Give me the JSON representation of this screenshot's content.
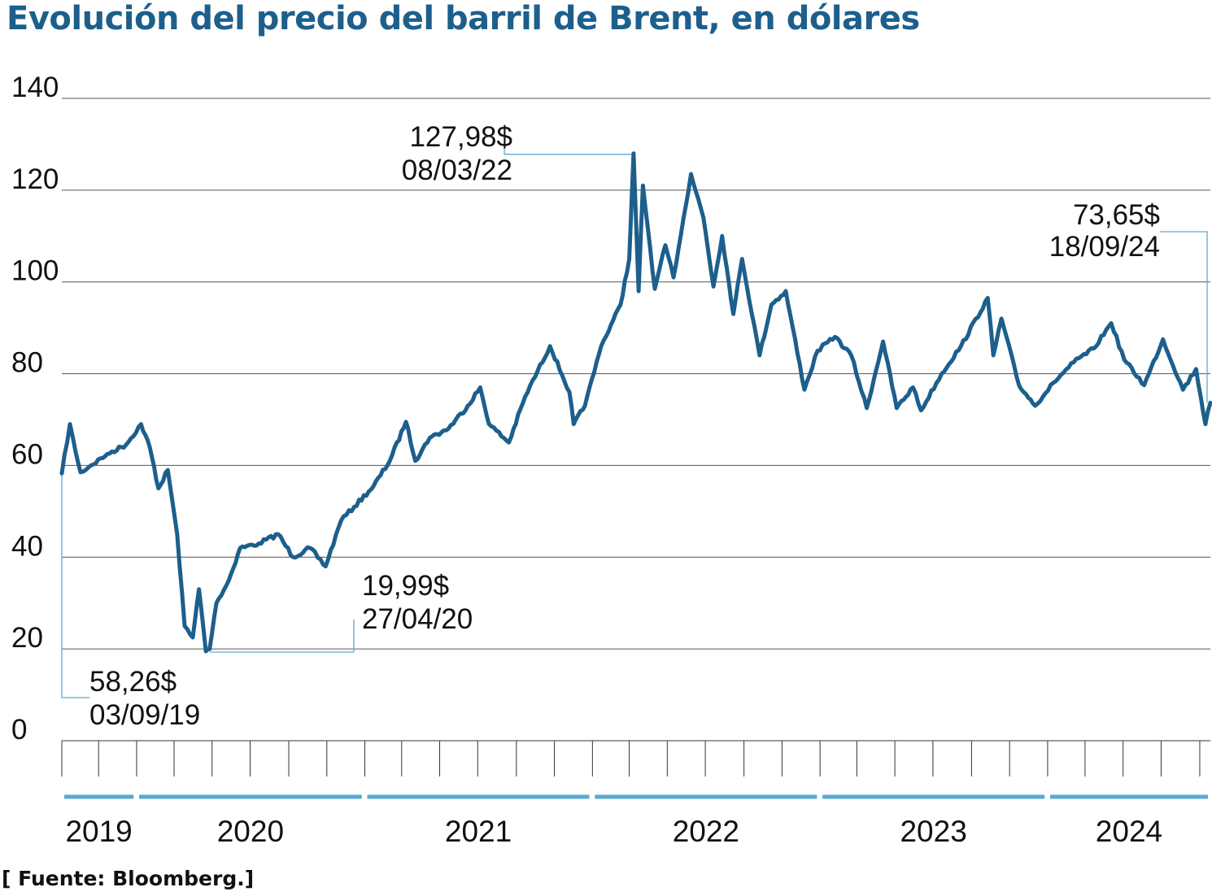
{
  "title": "Evolución del precio del barril de Brent, en dólares",
  "source": "[ Fuente: Bloomberg.]",
  "colors": {
    "line": "#1d5f8c",
    "accent": "#5aaad2",
    "grid": "#555555",
    "title": "#1d5f8c"
  },
  "chart_data": {
    "type": "line",
    "title": "Evolución del precio del barril de Brent, en dólares",
    "xlabel": "",
    "ylabel": "",
    "ylim": [
      0,
      140
    ],
    "y_ticks": [
      0,
      20,
      40,
      60,
      80,
      100,
      120,
      140
    ],
    "x_range": [
      "2019-09-03",
      "2024-09-18"
    ],
    "grid": true,
    "years": [
      {
        "label": "2019",
        "start": "2019-09-03",
        "end": "2019-12-31"
      },
      {
        "label": "2020",
        "start": "2020-01-01",
        "end": "2020-12-31"
      },
      {
        "label": "2021",
        "start": "2021-01-01",
        "end": "2021-12-31"
      },
      {
        "label": "2022",
        "start": "2022-01-01",
        "end": "2022-12-31"
      },
      {
        "label": "2023",
        "start": "2023-01-01",
        "end": "2023-12-31"
      },
      {
        "label": "2024",
        "start": "2024-01-01",
        "end": "2024-09-18"
      }
    ],
    "series": [
      {
        "points": [
          [
            "2019-09-03",
            58.26
          ],
          [
            "2019-09-16",
            69.0
          ],
          [
            "2019-09-25",
            63.0
          ],
          [
            "2019-10-03",
            58.5
          ],
          [
            "2019-10-20",
            60.0
          ],
          [
            "2019-11-15",
            62.5
          ],
          [
            "2019-12-15",
            64.5
          ],
          [
            "2020-01-08",
            69.0
          ],
          [
            "2020-01-22",
            64.0
          ],
          [
            "2020-02-05",
            55.0
          ],
          [
            "2020-02-20",
            59.0
          ],
          [
            "2020-03-06",
            45.0
          ],
          [
            "2020-03-18",
            25.0
          ],
          [
            "2020-03-31",
            22.5
          ],
          [
            "2020-04-10",
            33.0
          ],
          [
            "2020-04-21",
            19.5
          ],
          [
            "2020-04-27",
            19.99
          ],
          [
            "2020-05-08",
            30.0
          ],
          [
            "2020-05-28",
            35.0
          ],
          [
            "2020-06-15",
            42.0
          ],
          [
            "2020-07-15",
            43.0
          ],
          [
            "2020-08-15",
            45.0
          ],
          [
            "2020-09-08",
            40.0
          ],
          [
            "2020-10-05",
            42.0
          ],
          [
            "2020-10-30",
            38.0
          ],
          [
            "2020-11-24",
            48.0
          ],
          [
            "2020-12-15",
            51.0
          ],
          [
            "2021-01-15",
            55.5
          ],
          [
            "2021-02-10",
            61.0
          ],
          [
            "2021-03-08",
            69.5
          ],
          [
            "2021-03-23",
            61.0
          ],
          [
            "2021-04-15",
            66.0
          ],
          [
            "2021-05-15",
            68.0
          ],
          [
            "2021-06-15",
            73.0
          ],
          [
            "2021-07-05",
            77.0
          ],
          [
            "2021-07-19",
            69.0
          ],
          [
            "2021-08-20",
            65.0
          ],
          [
            "2021-09-15",
            75.0
          ],
          [
            "2021-10-25",
            86.0
          ],
          [
            "2021-11-25",
            76.0
          ],
          [
            "2021-12-02",
            69.0
          ],
          [
            "2021-12-20",
            73.0
          ],
          [
            "2022-01-15",
            86.0
          ],
          [
            "2022-02-15",
            95.0
          ],
          [
            "2022-03-01",
            105.0
          ],
          [
            "2022-03-08",
            127.98
          ],
          [
            "2022-03-16",
            98.0
          ],
          [
            "2022-03-23",
            121.0
          ],
          [
            "2022-04-11",
            98.5
          ],
          [
            "2022-04-28",
            108.0
          ],
          [
            "2022-05-11",
            101.0
          ],
          [
            "2022-06-08",
            123.5
          ],
          [
            "2022-06-28",
            114.0
          ],
          [
            "2022-07-14",
            99.0
          ],
          [
            "2022-07-28",
            110.0
          ],
          [
            "2022-08-15",
            93.0
          ],
          [
            "2022-08-29",
            105.0
          ],
          [
            "2022-09-26",
            84.0
          ],
          [
            "2022-10-15",
            95.0
          ],
          [
            "2022-11-07",
            98.0
          ],
          [
            "2022-12-07",
            76.5
          ],
          [
            "2022-12-28",
            85.0
          ],
          [
            "2023-01-25",
            88.0
          ],
          [
            "2023-02-20",
            84.0
          ],
          [
            "2023-03-17",
            72.5
          ],
          [
            "2023-04-12",
            87.0
          ],
          [
            "2023-05-04",
            72.5
          ],
          [
            "2023-05-30",
            77.0
          ],
          [
            "2023-06-12",
            72.0
          ],
          [
            "2023-07-15",
            80.0
          ],
          [
            "2023-08-15",
            86.0
          ],
          [
            "2023-09-27",
            96.5
          ],
          [
            "2023-10-06",
            84.0
          ],
          [
            "2023-10-19",
            92.0
          ],
          [
            "2023-11-16",
            77.5
          ],
          [
            "2023-12-12",
            73.0
          ],
          [
            "2024-01-10",
            78.0
          ],
          [
            "2024-02-12",
            82.5
          ],
          [
            "2024-03-15",
            85.5
          ],
          [
            "2024-04-12",
            91.0
          ],
          [
            "2024-05-03",
            83.0
          ],
          [
            "2024-06-04",
            77.5
          ],
          [
            "2024-07-04",
            87.5
          ],
          [
            "2024-08-05",
            76.5
          ],
          [
            "2024-08-26",
            81.0
          ],
          [
            "2024-09-10",
            69.0
          ],
          [
            "2024-09-18",
            73.65
          ]
        ]
      }
    ],
    "annotations": [
      {
        "date": "2019-09-03",
        "value": 58.26,
        "label_value": "58,26$",
        "label_date": "03/09/19"
      },
      {
        "date": "2020-04-27",
        "value": 19.99,
        "label_value": "19,99$",
        "label_date": "27/04/20"
      },
      {
        "date": "2022-03-08",
        "value": 127.98,
        "label_value": "127,98$",
        "label_date": "08/03/22"
      },
      {
        "date": "2024-09-18",
        "value": 73.65,
        "label_value": "73,65$",
        "label_date": "18/09/24"
      }
    ]
  }
}
